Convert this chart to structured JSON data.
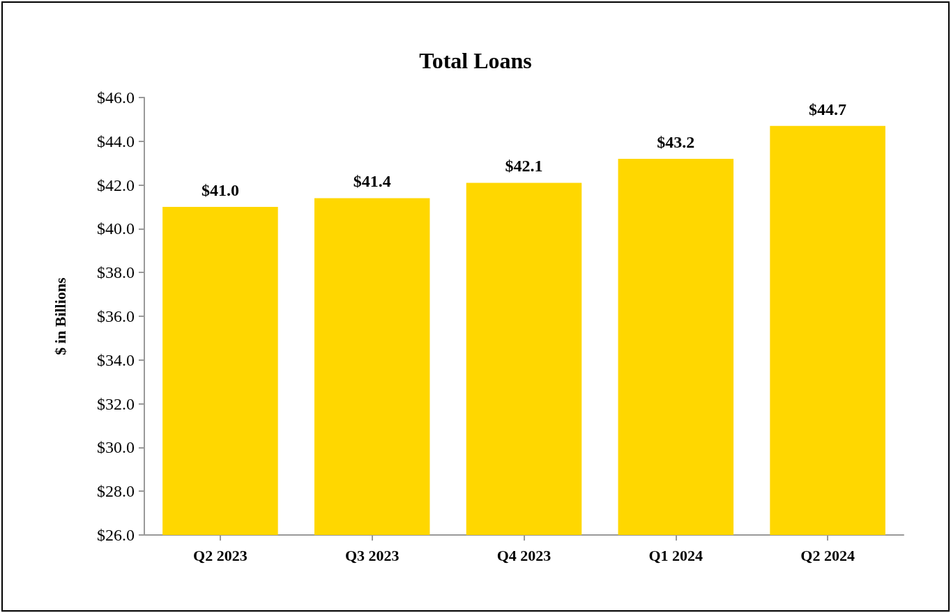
{
  "chart_data": {
    "type": "bar",
    "title": "Total Loans",
    "ylabel": "$ in Billions",
    "categories": [
      "Q2 2023",
      "Q3 2023",
      "Q4 2023",
      "Q1 2024",
      "Q2 2024"
    ],
    "values": [
      41.0,
      41.4,
      42.1,
      43.2,
      44.7
    ],
    "value_labels": [
      "$41.0",
      "$41.4",
      "$42.1",
      "$43.2",
      "$44.7"
    ],
    "color": "#ffd700",
    "ylim": [
      26,
      46
    ],
    "yticks": [
      {
        "value": 26,
        "label": "$26.0"
      },
      {
        "value": 28,
        "label": "$28.0"
      },
      {
        "value": 30,
        "label": "$30.0"
      },
      {
        "value": 32,
        "label": "$32.0"
      },
      {
        "value": 34,
        "label": "$34.0"
      },
      {
        "value": 36,
        "label": "$36.0"
      },
      {
        "value": 38,
        "label": "$38.0"
      },
      {
        "value": 40,
        "label": "$40.0"
      },
      {
        "value": 42,
        "label": "$42.0"
      },
      {
        "value": 44,
        "label": "$44.0"
      },
      {
        "value": 46,
        "label": "$46.0"
      }
    ],
    "grid": false
  }
}
